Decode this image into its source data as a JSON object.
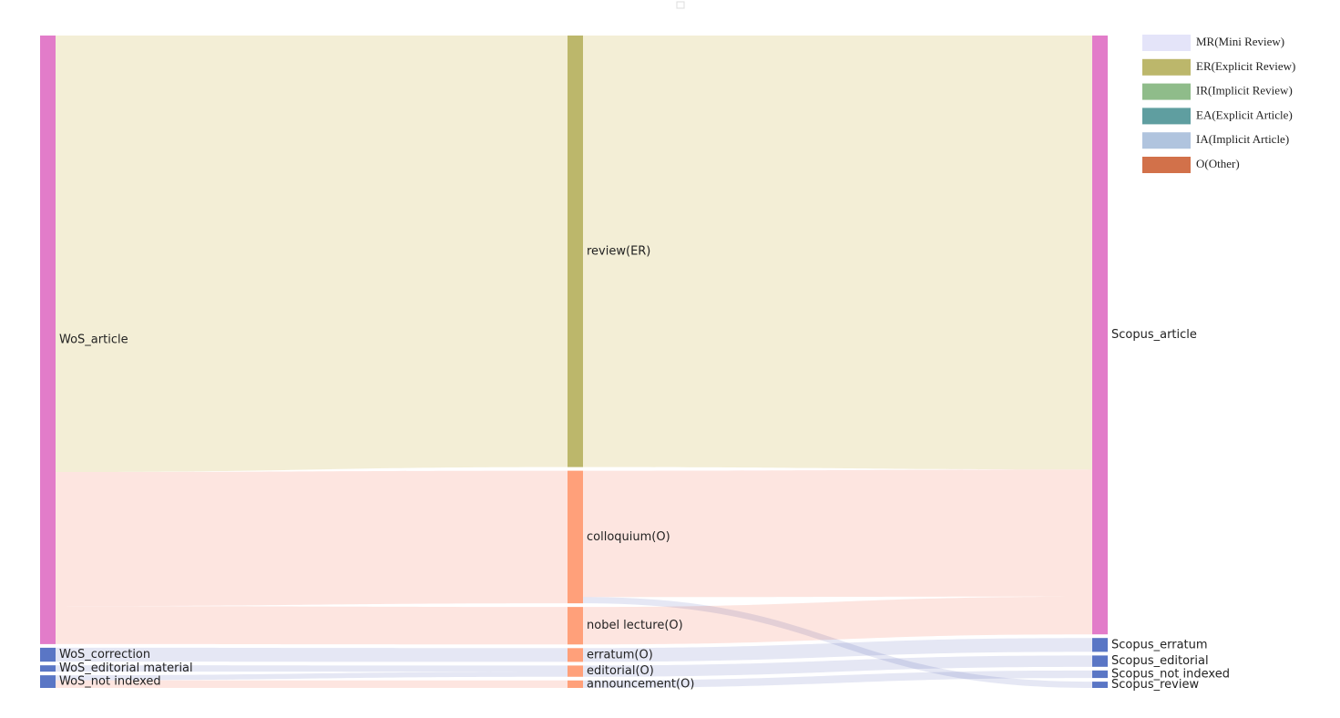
{
  "chart_data": {
    "type": "sankey",
    "title": "",
    "columns": [
      [
        {
          "id": "wos_article",
          "label": "WoS_article",
          "value": 962,
          "color": "#e27cc9"
        },
        {
          "id": "wos_correction",
          "label": "WoS_correction",
          "value": 22,
          "color": "#5a76c5"
        },
        {
          "id": "wos_editorial",
          "label": "WoS_editorial material",
          "value": 10,
          "color": "#5a76c5"
        },
        {
          "id": "wos_notindexed",
          "label": "WoS_not indexed",
          "value": 20,
          "color": "#5a76c5"
        }
      ],
      [
        {
          "id": "review",
          "label": "review(ER)",
          "value": 690,
          "color": "#bcb76b"
        },
        {
          "id": "colloquium",
          "label": "colloquium(O)",
          "value": 212,
          "color": "#ffa07a"
        },
        {
          "id": "nobel",
          "label": "nobel lecture(O)",
          "value": 60,
          "color": "#ffa07a"
        },
        {
          "id": "erratum",
          "label": "erratum(O)",
          "value": 22,
          "color": "#ffa07a"
        },
        {
          "id": "editorial",
          "label": "editorial(O)",
          "value": 18,
          "color": "#ffa07a"
        },
        {
          "id": "announcement",
          "label": "announcement(O)",
          "value": 12,
          "color": "#ffa07a"
        }
      ],
      [
        {
          "id": "scopus_article",
          "label": "Scopus_article",
          "value": 952,
          "color": "#e27cc9"
        },
        {
          "id": "scopus_erratum",
          "label": "Scopus_erratum",
          "value": 22,
          "color": "#5a76c5"
        },
        {
          "id": "scopus_editorial",
          "label": "Scopus_editorial",
          "value": 18,
          "color": "#5a76c5"
        },
        {
          "id": "scopus_notindexed",
          "label": "Scopus_not indexed",
          "value": 12,
          "color": "#5a76c5"
        },
        {
          "id": "scopus_review",
          "label": "Scopus_review",
          "value": 10,
          "color": "#5a76c5"
        }
      ]
    ],
    "links": [
      {
        "source": "wos_article",
        "target": "review",
        "value": 690,
        "color": "#efe8c8"
      },
      {
        "source": "wos_article",
        "target": "colloquium",
        "value": 212,
        "color": "#fcdcd6"
      },
      {
        "source": "wos_article",
        "target": "nobel",
        "value": 60,
        "color": "#fcdcd6"
      },
      {
        "source": "wos_correction",
        "target": "erratum",
        "value": 22,
        "color": "#dcdff0"
      },
      {
        "source": "wos_editorial",
        "target": "editorial",
        "value": 10,
        "color": "#dcdff0"
      },
      {
        "source": "wos_notindexed",
        "target": "editorial",
        "value": 8,
        "color": "#dcdff0"
      },
      {
        "source": "wos_notindexed",
        "target": "announcement",
        "value": 12,
        "color": "#fcdcd6"
      },
      {
        "source": "review",
        "target": "scopus_article",
        "value": 690,
        "color": "#efe8c8"
      },
      {
        "source": "colloquium",
        "target": "scopus_article",
        "value": 202,
        "color": "#fcdcd6"
      },
      {
        "source": "colloquium",
        "target": "scopus_review",
        "value": 10,
        "color": "#dcdff0"
      },
      {
        "source": "nobel",
        "target": "scopus_article",
        "value": 60,
        "color": "#fcdcd6"
      },
      {
        "source": "erratum",
        "target": "scopus_erratum",
        "value": 22,
        "color": "#dcdff0"
      },
      {
        "source": "editorial",
        "target": "scopus_editorial",
        "value": 18,
        "color": "#dcdff0"
      },
      {
        "source": "announcement",
        "target": "scopus_notindexed",
        "value": 12,
        "color": "#dcdff0"
      }
    ],
    "legend": {
      "position": "top-right",
      "items": [
        {
          "label": "MR(Mini Review)",
          "color": "#e4e4f9"
        },
        {
          "label": "ER(Explicit Review)",
          "color": "#bcb76b"
        },
        {
          "label": "IR(Implicit Review)",
          "color": "#8fbc8a"
        },
        {
          "label": "EA(Explicit Article)",
          "color": "#5f9ea0"
        },
        {
          "label": "IA(Implicit Article)",
          "color": "#b0c4de"
        },
        {
          "label": "O(Other)",
          "color": "#d2714a"
        }
      ]
    }
  }
}
